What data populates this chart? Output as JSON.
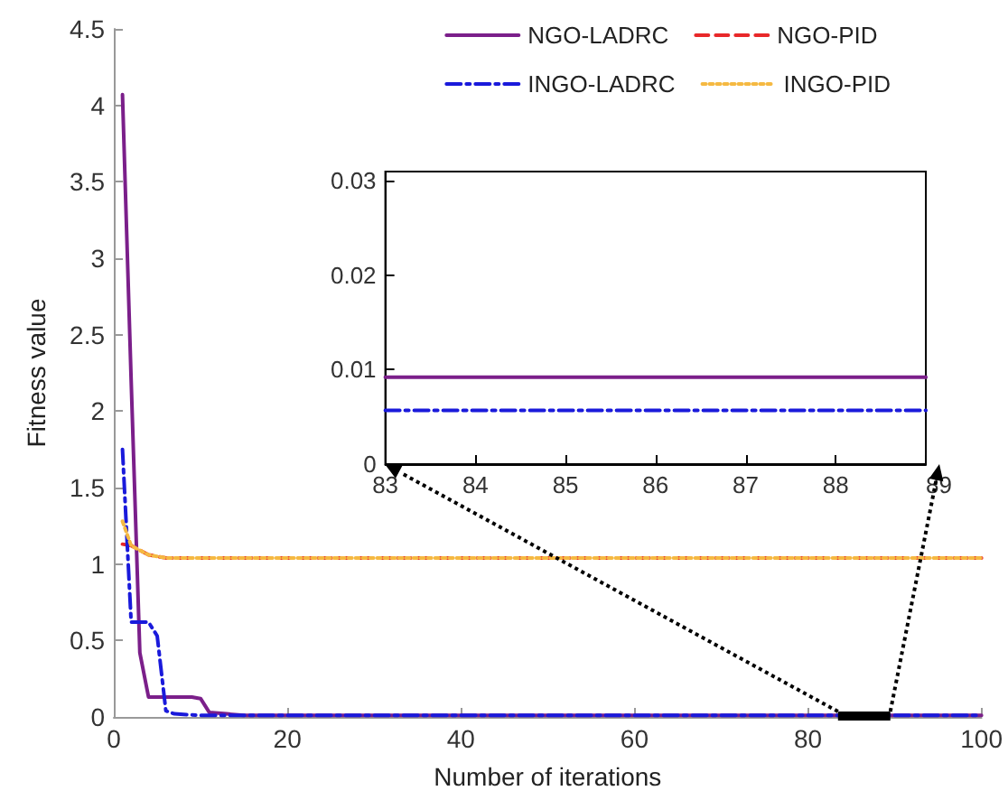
{
  "chart_data": [
    {
      "type": "line",
      "xlabel": "Number of iterations",
      "ylabel": "Fitness value",
      "xlim": [
        0,
        100
      ],
      "xticks": [
        0,
        20,
        40,
        60,
        80,
        100
      ],
      "ylim": [
        0,
        4.5
      ],
      "yticks": [
        0,
        0.5,
        1,
        1.5,
        2,
        2.5,
        3,
        3.5,
        4,
        4.5
      ],
      "legend": "top right",
      "grid": false,
      "marker": "none",
      "series": [
        {
          "name": "NGO-LADRC",
          "color": "#7b1f8a",
          "line_style": "solid",
          "x": [
            1,
            2,
            3,
            4,
            9,
            10,
            11,
            13,
            15,
            100
          ],
          "values": [
            4.07,
            2.2,
            0.42,
            0.13,
            0.13,
            0.12,
            0.03,
            0.02,
            0.01,
            0.01
          ]
        },
        {
          "name": "NGO-PID",
          "color": "#e8282a",
          "line_style": "dashed",
          "x": [
            1,
            2,
            4,
            6,
            100
          ],
          "values": [
            1.13,
            1.12,
            1.06,
            1.04,
            1.04
          ]
        },
        {
          "name": "INGO-LADRC",
          "color": "#1a1adb",
          "line_style": "dashdot",
          "x": [
            1,
            2,
            4,
            5,
            6,
            7,
            10,
            100
          ],
          "values": [
            1.75,
            0.62,
            0.62,
            0.53,
            0.04,
            0.02,
            0.01,
            0.01
          ]
        },
        {
          "name": "INGO-PID",
          "color": "#f5b942",
          "line_style": "dotted",
          "x": [
            1,
            2,
            4,
            6,
            100
          ],
          "values": [
            1.28,
            1.12,
            1.06,
            1.04,
            1.04
          ]
        }
      ]
    },
    {
      "type": "line",
      "xlim": [
        83,
        89
      ],
      "xticks": [
        83,
        84,
        85,
        86,
        87,
        88,
        89
      ],
      "ylim": [
        0,
        0.031
      ],
      "yticks": [
        0,
        0.01,
        0.02,
        0.03
      ],
      "grid": false,
      "marker": "none",
      "series": [
        {
          "color": "#7b1f8a",
          "line_style": "solid",
          "x": [
            83,
            89
          ],
          "values": [
            0.0092,
            0.0092
          ]
        },
        {
          "color": "#1a1adb",
          "line_style": "dashdot",
          "x": [
            83,
            89
          ],
          "values": [
            0.0057,
            0.0057
          ]
        }
      ]
    }
  ]
}
